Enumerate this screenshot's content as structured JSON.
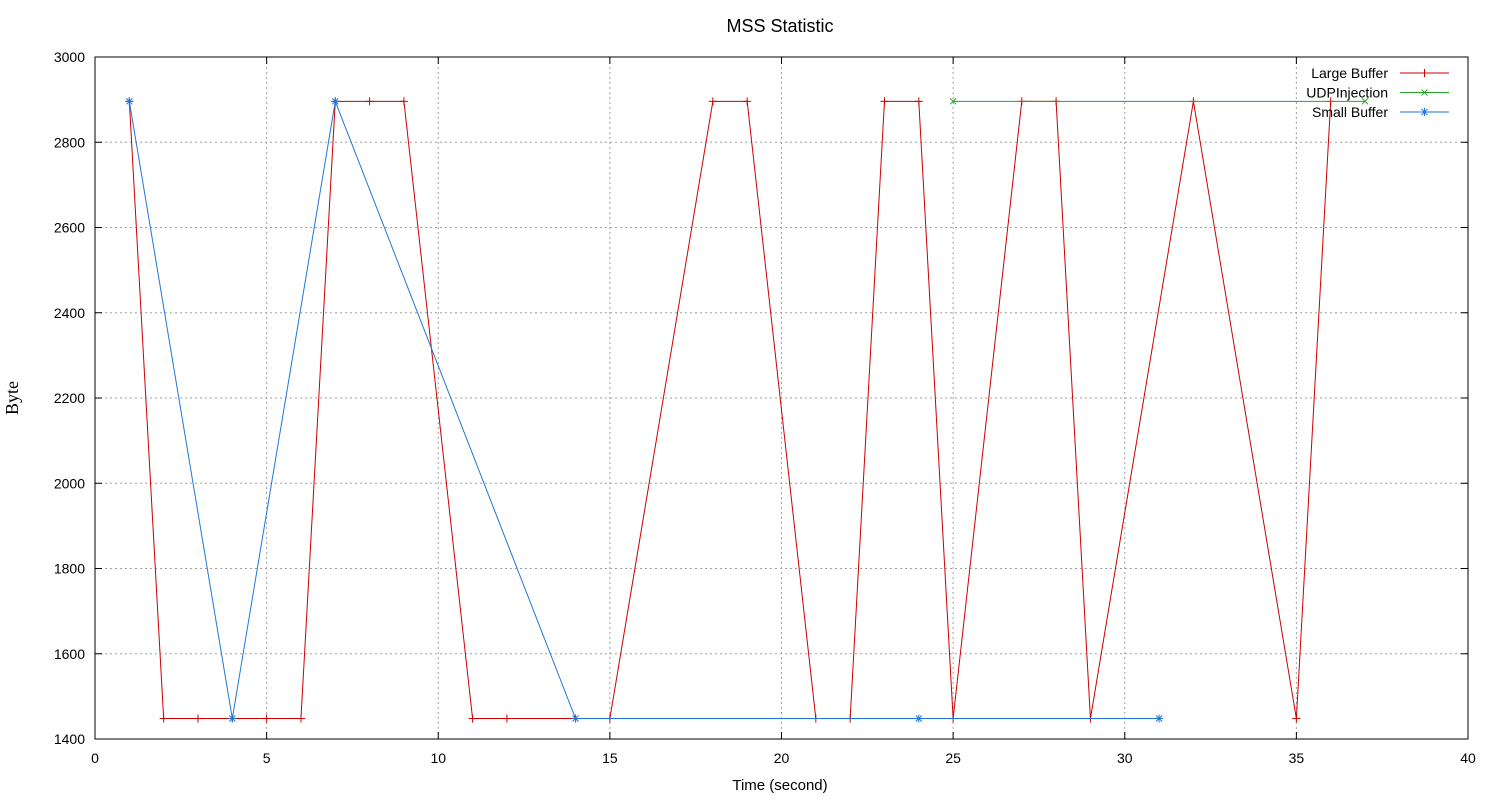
{
  "chart_data": {
    "type": "line",
    "title": "MSS Statistic",
    "xlabel": "Time (second)",
    "ylabel": "Byte",
    "xlim": [
      0,
      40
    ],
    "ylim": [
      1400,
      3000
    ],
    "xticks": [
      0,
      5,
      10,
      15,
      20,
      25,
      30,
      35,
      40
    ],
    "yticks": [
      1400,
      1600,
      1800,
      2000,
      2200,
      2400,
      2600,
      2800,
      3000
    ],
    "grid": true,
    "legend_position": "top-right",
    "series": [
      {
        "name": "Large Buffer",
        "color": "#cc0000",
        "marker": "plus",
        "x": [
          1,
          2,
          3,
          4,
          5,
          6,
          7,
          8,
          9,
          11,
          12,
          14,
          15,
          18,
          19,
          21,
          22,
          23,
          24,
          25,
          27,
          28,
          29,
          32,
          35,
          36
        ],
        "y": [
          2896,
          1448,
          1448,
          1448,
          1448,
          1448,
          2896,
          2896,
          2896,
          1448,
          1448,
          1448,
          1448,
          2896,
          2896,
          1448,
          1448,
          2896,
          2896,
          1448,
          2896,
          2896,
          1448,
          2896,
          1448,
          2896
        ]
      },
      {
        "name": "UDPInjection",
        "color": "#2ca02c",
        "marker": "x",
        "x": [
          25,
          37
        ],
        "y": [
          2896,
          2896
        ]
      },
      {
        "name": "Small Buffer",
        "color": "#1f77d4",
        "marker": "star",
        "x": [
          1,
          4,
          7,
          14,
          24,
          31
        ],
        "y": [
          2896,
          1448,
          2896,
          1448,
          1448,
          1448
        ]
      }
    ]
  }
}
